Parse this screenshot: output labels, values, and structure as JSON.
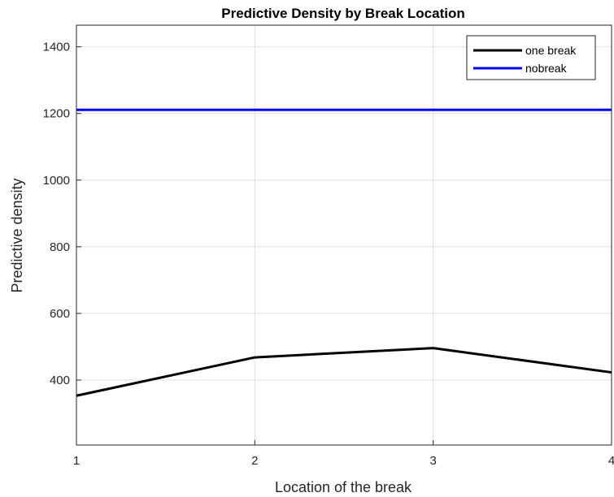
{
  "chart_data": {
    "type": "line",
    "title": "Predictive Density by Break Location",
    "xlabel": "Location of the break",
    "ylabel": "Predictive density",
    "xlim": [
      1,
      4
    ],
    "ylim": [
      205,
      1465
    ],
    "xticks": [
      1,
      2,
      3,
      4
    ],
    "yticks": [
      400,
      600,
      800,
      1000,
      1200,
      1400
    ],
    "grid": true,
    "legend_position": "top-right",
    "series": [
      {
        "name": "one break",
        "color": "#000000",
        "x": [
          1,
          2,
          3,
          4
        ],
        "y": [
          353,
          468,
          496,
          423
        ]
      },
      {
        "name": "nobreak",
        "color": "#0000ff",
        "x": [
          1,
          2,
          3,
          4
        ],
        "y": [
          1211,
          1211,
          1211,
          1211
        ]
      }
    ]
  }
}
